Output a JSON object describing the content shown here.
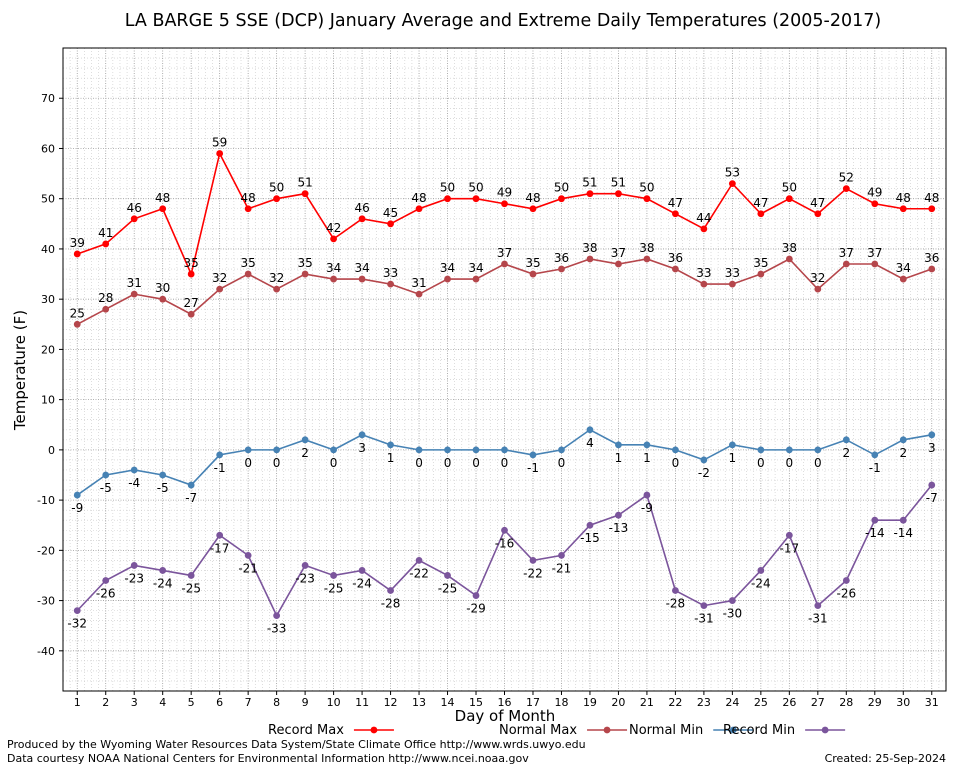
{
  "chart_data": {
    "type": "line",
    "title": "LA BARGE 5 SSE (DCP) January Average and Extreme Daily Temperatures (2005-2017)",
    "xlabel": "Day of Month",
    "ylabel": "Temperature (F)",
    "ylim": [
      -48,
      80
    ],
    "xlim": [
      0.5,
      31.5
    ],
    "yticks": [
      -40,
      -30,
      -20,
      -10,
      0,
      10,
      20,
      30,
      40,
      50,
      60,
      70
    ],
    "x": [
      1,
      2,
      3,
      4,
      5,
      6,
      7,
      8,
      9,
      10,
      11,
      12,
      13,
      14,
      15,
      16,
      17,
      18,
      19,
      20,
      21,
      22,
      23,
      24,
      25,
      26,
      27,
      28,
      29,
      30,
      31
    ],
    "grid": true,
    "legend_position": "bottom",
    "series": [
      {
        "name": "Record Max",
        "color": "#ff0000",
        "values": [
          39,
          41,
          46,
          48,
          35,
          59,
          48,
          50,
          51,
          42,
          46,
          45,
          48,
          50,
          50,
          49,
          48,
          50,
          51,
          51,
          50,
          47,
          44,
          53,
          47,
          50,
          47,
          52,
          49,
          48,
          48
        ]
      },
      {
        "name": "Normal Max",
        "color": "#b5464b",
        "values": [
          25,
          28,
          31,
          30,
          27,
          32,
          35,
          32,
          35,
          34,
          34,
          33,
          31,
          34,
          34,
          37,
          35,
          36,
          38,
          37,
          38,
          36,
          33,
          33,
          35,
          38,
          32,
          37,
          37,
          34,
          36
        ]
      },
      {
        "name": "Normal Min",
        "color": "#4682b4",
        "values": [
          -9,
          -5,
          -4,
          -5,
          -7,
          -1,
          0,
          0,
          2,
          0,
          3,
          1,
          0,
          0,
          0,
          0,
          -1,
          0,
          4,
          1,
          1,
          0,
          -2,
          1,
          0,
          0,
          0,
          2,
          -1,
          2,
          3
        ]
      },
      {
        "name": "Record Min",
        "color": "#7b559c",
        "values": [
          -32,
          -26,
          -23,
          -24,
          -25,
          -17,
          -21,
          -33,
          -23,
          -25,
          -24,
          -28,
          -22,
          -25,
          -29,
          -16,
          -22,
          -21,
          -15,
          -13,
          -9,
          -28,
          -31,
          -30,
          -24,
          -17,
          -31,
          -26,
          -14,
          -14,
          -7
        ]
      }
    ]
  },
  "footer": {
    "produced_by": "Produced by the Wyoming Water Resources Data System/State Climate Office http://www.wrds.uwyo.edu",
    "courtesy": "Data courtesy NOAA National Centers for Environmental Information http://www.ncei.noaa.gov",
    "created": "Created: 25-Sep-2024"
  }
}
